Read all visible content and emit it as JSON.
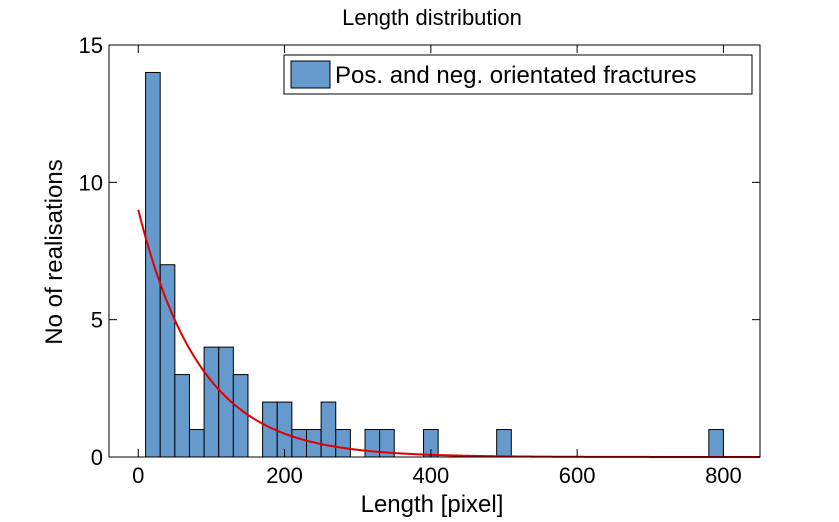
{
  "chart_data": {
    "type": "bar",
    "title": "Length distribution",
    "xlabel": "Length [pixel]",
    "ylabel": "No of realisations",
    "xlim": [
      -40,
      850
    ],
    "ylim": [
      0,
      15
    ],
    "x_ticks": [
      0,
      200,
      400,
      600,
      800
    ],
    "y_ticks": [
      0,
      5,
      10,
      15
    ],
    "grid": false,
    "legend_position": "top-right",
    "bin_width": 20,
    "series": [
      {
        "name": "Pos. and neg. orientated fractures",
        "color": "#6699CC",
        "bins": [
          {
            "center": 20,
            "value": 14
          },
          {
            "center": 40,
            "value": 7
          },
          {
            "center": 60,
            "value": 3
          },
          {
            "center": 80,
            "value": 1
          },
          {
            "center": 100,
            "value": 4
          },
          {
            "center": 120,
            "value": 4
          },
          {
            "center": 140,
            "value": 3
          },
          {
            "center": 180,
            "value": 2
          },
          {
            "center": 200,
            "value": 2
          },
          {
            "center": 220,
            "value": 1
          },
          {
            "center": 240,
            "value": 1
          },
          {
            "center": 260,
            "value": 2
          },
          {
            "center": 280,
            "value": 1
          },
          {
            "center": 320,
            "value": 1
          },
          {
            "center": 340,
            "value": 1
          },
          {
            "center": 400,
            "value": 1
          },
          {
            "center": 500,
            "value": 1
          },
          {
            "center": 790,
            "value": 1
          }
        ]
      }
    ],
    "fit_curve": {
      "color": "#E00000",
      "type": "exponential",
      "amplitude": 9,
      "decay": 0.0118,
      "x_range": [
        0,
        850
      ]
    }
  }
}
